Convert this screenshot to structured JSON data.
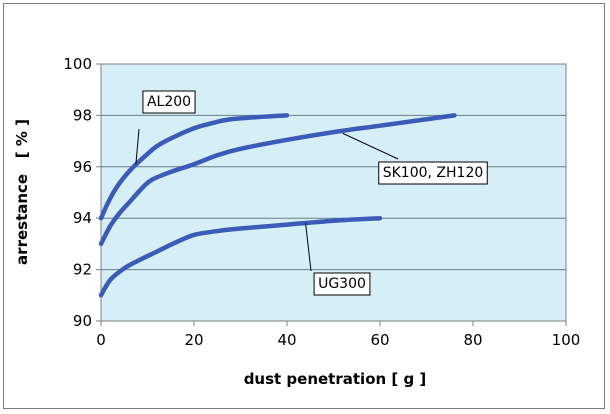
{
  "chart_data": {
    "type": "line",
    "title": "",
    "xlabel": "dust penetration [ g ]",
    "ylabel": "arrestance   [ % ]",
    "xlim": [
      0,
      100
    ],
    "ylim": [
      90,
      100
    ],
    "xticks": [
      0,
      20,
      40,
      60,
      80,
      100
    ],
    "yticks": [
      90,
      92,
      94,
      96,
      98,
      100
    ],
    "grid": "horizontal",
    "legend": "none",
    "plot_background": "#d6eef5",
    "series": [
      {
        "name": "AL200",
        "color": "#3b5bb8",
        "x": [
          0,
          1.5,
          3,
          5,
          7,
          10,
          12,
          15,
          20,
          25,
          28,
          35,
          40
        ],
        "y": [
          94.0,
          94.6,
          95.1,
          95.6,
          96.0,
          96.5,
          96.8,
          97.1,
          97.5,
          97.75,
          97.85,
          97.95,
          98.0
        ]
      },
      {
        "name": "SK100, ZH120",
        "color": "#3b5bb8",
        "x": [
          0,
          2,
          4,
          6,
          9,
          11,
          15,
          20,
          25,
          30,
          40,
          50,
          60,
          70,
          76
        ],
        "y": [
          93.0,
          93.7,
          94.2,
          94.6,
          95.2,
          95.5,
          95.8,
          96.1,
          96.45,
          96.7,
          97.05,
          97.35,
          97.6,
          97.85,
          98.0
        ]
      },
      {
        "name": "UG300",
        "color": "#3b5bb8",
        "x": [
          0,
          2,
          5,
          8,
          12,
          16,
          20,
          25,
          30,
          40,
          50,
          60
        ],
        "y": [
          91.0,
          91.6,
          92.05,
          92.35,
          92.7,
          93.05,
          93.35,
          93.5,
          93.6,
          93.75,
          93.9,
          94.0
        ]
      }
    ],
    "annotations": [
      {
        "text": "AL200",
        "series": 0,
        "point_x": 7.5,
        "point_y": 96.1
      },
      {
        "text": "SK100, ZH120",
        "series": 1,
        "point_x": 52,
        "point_y": 97.3
      },
      {
        "text": "UG300",
        "series": 2,
        "point_x": 44,
        "point_y": 93.8
      }
    ]
  }
}
